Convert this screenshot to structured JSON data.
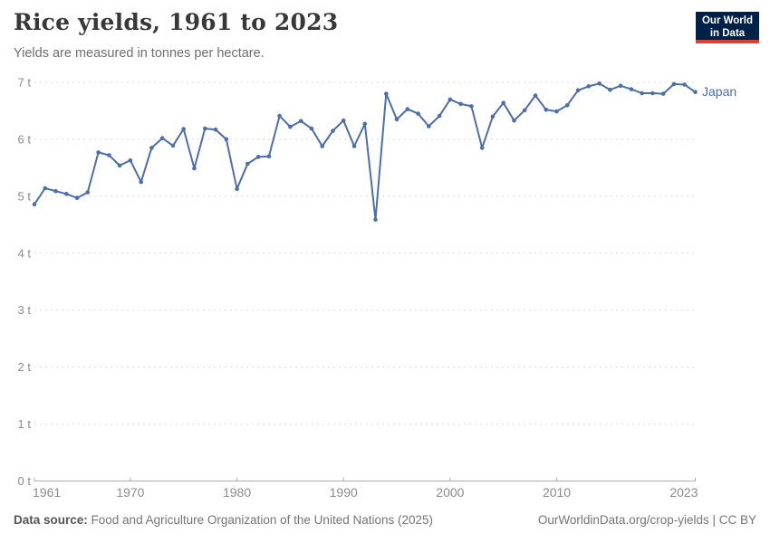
{
  "header": {
    "title": "Rice yields, 1961 to 2023",
    "subtitle": "Yields are measured in tonnes per hectare.",
    "logo_line1": "Our World",
    "logo_line2": "in Data"
  },
  "chart_data": {
    "type": "line",
    "title": "Rice yields, 1961 to 2023",
    "ylabel": "tonnes per hectare",
    "xlabel": "",
    "xlim": [
      1961,
      2023
    ],
    "ylim": [
      0,
      7
    ],
    "grid": "horizontal-dashed",
    "legend_position": "end-of-line-label",
    "yticks": [
      {
        "value": 0,
        "label": "0 t"
      },
      {
        "value": 1,
        "label": "1 t"
      },
      {
        "value": 2,
        "label": "2 t"
      },
      {
        "value": 3,
        "label": "3 t"
      },
      {
        "value": 4,
        "label": "4 t"
      },
      {
        "value": 5,
        "label": "5 t"
      },
      {
        "value": 6,
        "label": "6 t"
      },
      {
        "value": 7,
        "label": "7 t"
      }
    ],
    "xticks": [
      {
        "value": 1961,
        "label": "1961"
      },
      {
        "value": 1970,
        "label": "1970"
      },
      {
        "value": 1980,
        "label": "1980"
      },
      {
        "value": 1990,
        "label": "1990"
      },
      {
        "value": 2000,
        "label": "2000"
      },
      {
        "value": 2010,
        "label": "2010"
      },
      {
        "value": 2023,
        "label": "2023"
      }
    ],
    "series": [
      {
        "name": "Japan",
        "color": "#4C6EA9",
        "x": [
          1961,
          1962,
          1963,
          1964,
          1965,
          1966,
          1967,
          1968,
          1969,
          1970,
          1971,
          1972,
          1973,
          1974,
          1975,
          1976,
          1977,
          1978,
          1979,
          1980,
          1981,
          1982,
          1983,
          1984,
          1985,
          1986,
          1987,
          1988,
          1989,
          1990,
          1991,
          1992,
          1993,
          1994,
          1995,
          1996,
          1997,
          1998,
          1999,
          2000,
          2001,
          2002,
          2003,
          2004,
          2005,
          2006,
          2007,
          2008,
          2009,
          2010,
          2011,
          2012,
          2013,
          2014,
          2015,
          2016,
          2017,
          2018,
          2019,
          2020,
          2021,
          2022,
          2023
        ],
        "values": [
          4.86,
          5.14,
          5.09,
          5.04,
          4.97,
          5.07,
          5.77,
          5.72,
          5.54,
          5.63,
          5.25,
          5.85,
          6.02,
          5.89,
          6.18,
          5.49,
          6.19,
          6.17,
          6.0,
          5.13,
          5.57,
          5.69,
          5.7,
          6.41,
          6.22,
          6.32,
          6.19,
          5.88,
          6.15,
          6.33,
          5.88,
          6.27,
          4.59,
          6.8,
          6.35,
          6.53,
          6.45,
          6.23,
          6.41,
          6.7,
          6.62,
          6.58,
          5.85,
          6.4,
          6.64,
          6.33,
          6.51,
          6.77,
          6.52,
          6.49,
          6.6,
          6.86,
          6.93,
          6.98,
          6.87,
          6.94,
          6.88,
          6.81,
          6.81,
          6.8,
          6.97,
          6.96,
          6.83
        ]
      }
    ]
  },
  "footer": {
    "source_label": "Data source:",
    "source_text": " Food and Agriculture Organization of the United Nations (2025)",
    "credit": "OurWorldinData.org/crop-yields | CC BY"
  },
  "colors": {
    "line": "#4C6EA9",
    "gridline": "#DBDBDB",
    "axis_line": "#ADADAD",
    "axis_text": "#8C8C8C",
    "title": "#383838",
    "logo_bg": "#002147",
    "logo_red": "#DC3F34"
  }
}
